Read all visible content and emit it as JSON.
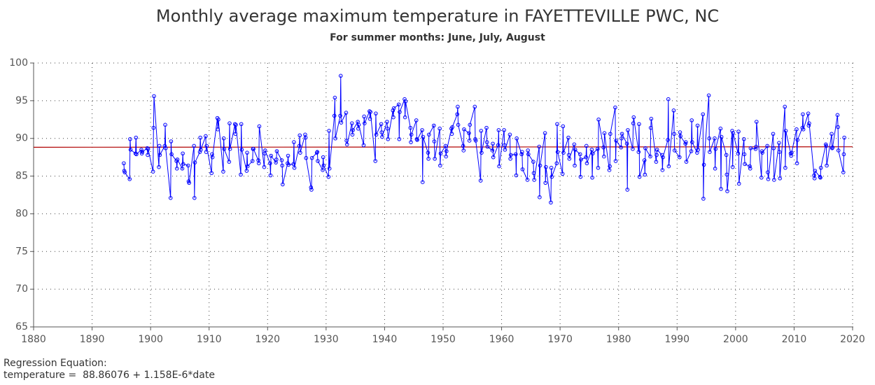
{
  "chart_data": {
    "type": "line",
    "title": "Monthly average maximum temperature in FAYETTEVILLE PWC, NC",
    "subtitle": "For summer months: June, July, August",
    "xlim": [
      1880,
      2020
    ],
    "xticks": [
      1880,
      1890,
      1900,
      1910,
      1920,
      1930,
      1940,
      1950,
      1960,
      1970,
      1980,
      1990,
      2000,
      2010,
      2020
    ],
    "ylim": [
      65,
      100
    ],
    "yticks": [
      65,
      70,
      75,
      80,
      85,
      90,
      95,
      100
    ],
    "grid": true,
    "regression": {
      "label": "Regression Equation:",
      "equation": "temperature =  88.86076 + 1.158E-6*date",
      "intercept": 88.86076,
      "slope": 1.158e-06,
      "color": "#b00000"
    },
    "x": [
      1895.42,
      1895.5,
      1895.58,
      1896.42,
      1896.5,
      1896.58,
      1897.42,
      1897.5,
      1897.58,
      1898.42,
      1898.5,
      1898.58,
      1899.42,
      1899.5,
      1899.58,
      1900.42,
      1900.5,
      1900.58,
      1901.42,
      1901.5,
      1901.58,
      1902.42,
      1902.5,
      1902.58,
      1903.42,
      1903.5,
      1903.58,
      1904.42,
      1904.5,
      1904.58,
      1905.42,
      1905.5,
      1905.58,
      1906.42,
      1906.5,
      1906.58,
      1907.42,
      1907.5,
      1907.58,
      1908.42,
      1908.5,
      1908.58,
      1909.42,
      1909.5,
      1909.58,
      1910.42,
      1910.5,
      1910.58,
      1911.42,
      1911.5,
      1911.58,
      1912.42,
      1912.5,
      1912.58,
      1913.42,
      1913.5,
      1913.58,
      1914.42,
      1914.5,
      1914.58,
      1915.42,
      1915.5,
      1915.58,
      1916.42,
      1916.5,
      1916.58,
      1917.42,
      1917.5,
      1917.58,
      1918.42,
      1918.5,
      1918.58,
      1919.42,
      1919.5,
      1919.58,
      1920.42,
      1920.5,
      1920.58,
      1921.42,
      1921.5,
      1921.58,
      1922.42,
      1922.5,
      1922.58,
      1923.42,
      1923.5,
      1923.58,
      1924.42,
      1924.5,
      1924.58,
      1925.42,
      1925.5,
      1925.58,
      1926.42,
      1926.5,
      1926.58,
      1927.42,
      1927.5,
      1927.58,
      1928.42,
      1928.5,
      1928.58,
      1929.42,
      1929.5,
      1929.58,
      1930.42,
      1930.5,
      1930.58,
      1931.42,
      1931.5,
      1931.58,
      1932.42,
      1932.5,
      1932.58,
      1933.42,
      1933.5,
      1933.58,
      1934.42,
      1934.5,
      1934.58,
      1935.42,
      1935.5,
      1935.58,
      1936.42,
      1936.5,
      1936.58,
      1937.42,
      1937.5,
      1937.58,
      1938.42,
      1938.5,
      1938.58,
      1939.42,
      1939.5,
      1939.58,
      1940.42,
      1940.5,
      1940.58,
      1941.42,
      1941.5,
      1941.58,
      1942.42,
      1942.5,
      1942.58,
      1943.42,
      1943.5,
      1943.58,
      1944.42,
      1944.5,
      1944.58,
      1945.42,
      1945.5,
      1945.58,
      1946.42,
      1946.5,
      1946.58,
      1947.42,
      1947.5,
      1947.58,
      1948.42,
      1948.5,
      1948.58,
      1949.42,
      1949.5,
      1949.58,
      1950.42,
      1950.5,
      1950.58,
      1951.42,
      1951.5,
      1951.58,
      1952.42,
      1952.5,
      1952.58,
      1953.42,
      1953.5,
      1953.58,
      1954.42,
      1954.5,
      1954.58,
      1955.42,
      1955.5,
      1955.58,
      1956.42,
      1956.5,
      1956.58,
      1957.42,
      1957.5,
      1957.58,
      1958.42,
      1958.5,
      1958.58,
      1959.42,
      1959.5,
      1959.58,
      1960.42,
      1960.5,
      1960.58,
      1961.42,
      1961.5,
      1961.58,
      1962.42,
      1962.5,
      1962.58,
      1963.42,
      1963.5,
      1963.58,
      1964.42,
      1964.5,
      1964.58,
      1965.42,
      1965.5,
      1965.58,
      1966.42,
      1966.5,
      1966.58,
      1967.42,
      1967.5,
      1967.58,
      1968.42,
      1968.5,
      1968.58,
      1969.42,
      1969.5,
      1969.58,
      1970.42,
      1970.5,
      1970.58,
      1971.42,
      1971.5,
      1971.58,
      1972.42,
      1972.5,
      1972.58,
      1973.42,
      1973.5,
      1973.58,
      1974.42,
      1974.5,
      1974.58,
      1975.42,
      1975.5,
      1975.58,
      1976.42,
      1976.5,
      1976.58,
      1977.42,
      1977.5,
      1977.58,
      1978.42,
      1978.5,
      1978.58,
      1979.42,
      1979.5,
      1979.58,
      1980.42,
      1980.5,
      1980.58,
      1981.42,
      1981.5,
      1981.58,
      1982.42,
      1982.5,
      1982.58,
      1983.42,
      1983.5,
      1983.58,
      1984.42,
      1984.5,
      1984.58,
      1985.42,
      1985.5,
      1985.58,
      1986.42,
      1986.5,
      1986.58,
      1987.42,
      1987.5,
      1987.58,
      1988.42,
      1988.5,
      1988.58,
      1989.42,
      1989.5,
      1989.58,
      1990.42,
      1990.5,
      1990.58,
      1991.42,
      1991.5,
      1991.58,
      1992.42,
      1992.5,
      1992.58,
      1993.42,
      1993.5,
      1993.58,
      1994.42,
      1994.5,
      1994.58,
      1995.42,
      1995.5,
      1995.58,
      1996.42,
      1996.5,
      1996.58,
      1997.42,
      1997.5,
      1997.58,
      1998.42,
      1998.5,
      1998.58,
      1999.42,
      1999.5,
      1999.58,
      2000.42,
      2000.5,
      2000.58,
      2001.42,
      2001.5,
      2001.58,
      2002.42,
      2002.5,
      2002.58,
      2003.42,
      2003.5,
      2003.58,
      2004.42,
      2004.5,
      2004.58,
      2005.42,
      2005.5,
      2005.58,
      2006.42,
      2006.5,
      2006.58,
      2007.42,
      2007.5,
      2007.58,
      2008.42,
      2008.5,
      2008.58,
      2009.42,
      2009.5,
      2009.58,
      2010.42,
      2010.5,
      2010.58,
      2011.42,
      2011.5,
      2011.58,
      2012.42,
      2012.5,
      2012.58,
      2013.42,
      2013.5,
      2013.58,
      2014.42,
      2014.5,
      2014.58,
      2015.42,
      2015.5,
      2015.58,
      2016.42,
      2016.5,
      2016.58,
      2017.42,
      2017.5,
      2017.58,
      2018.42,
      2018.5,
      2018.58
    ],
    "series": [
      {
        "color": "#0000ff",
        "values": [
          86.7,
          85.7,
          85.5,
          84.6,
          89.9,
          88.5,
          88.0,
          90.1,
          87.9,
          88.5,
          88.0,
          88.2,
          88.7,
          87.8,
          88.6,
          85.6,
          91.4,
          95.6,
          86.2,
          89.0,
          87.8,
          89.0,
          91.8,
          88.7,
          82.1,
          89.6,
          87.9,
          87.0,
          86.0,
          87.2,
          86.0,
          88.0,
          86.6,
          86.4,
          84.3,
          84.1,
          89.0,
          82.1,
          86.8,
          88.2,
          90.1,
          88.5,
          90.3,
          88.2,
          89.0,
          85.4,
          87.9,
          87.5,
          92.7,
          91.2,
          92.5,
          85.6,
          90.0,
          88.6,
          86.9,
          92.0,
          88.6,
          91.9,
          90.6,
          91.8,
          85.2,
          91.9,
          88.5,
          85.7,
          88.1,
          86.3,
          87.0,
          88.6,
          88.6,
          87.1,
          86.7,
          91.6,
          86.2,
          88.0,
          88.4,
          86.7,
          85.1,
          87.7,
          86.8,
          87.2,
          88.3,
          87.1,
          86.4,
          83.9,
          86.7,
          87.7,
          86.5,
          86.6,
          89.5,
          86.1,
          89.0,
          90.4,
          88.1,
          90.5,
          90.1,
          87.4,
          83.5,
          83.2,
          87.4,
          88.1,
          88.2,
          87.0,
          85.8,
          87.5,
          86.4,
          84.9,
          91.0,
          86.0,
          93.0,
          95.4,
          90.0,
          93.0,
          98.3,
          92.1,
          93.4,
          89.7,
          89.2,
          92.0,
          90.5,
          91.1,
          92.2,
          91.3,
          91.8,
          89.1,
          92.9,
          92.0,
          93.6,
          92.6,
          93.5,
          87.0,
          93.3,
          90.5,
          91.9,
          90.8,
          90.2,
          92.2,
          91.3,
          89.9,
          93.7,
          92.8,
          94.0,
          94.5,
          89.9,
          93.5,
          95.2,
          92.8,
          94.9,
          91.4,
          89.5,
          90.5,
          92.4,
          89.9,
          89.8,
          91.1,
          84.2,
          90.2,
          88.1,
          87.3,
          90.5,
          91.7,
          89.6,
          87.3,
          91.3,
          86.4,
          88.0,
          89.0,
          87.6,
          88.3,
          91.3,
          90.6,
          91.5,
          93.2,
          94.2,
          91.8,
          89.0,
          88.4,
          91.2,
          90.7,
          89.7,
          91.8,
          94.2,
          89.9,
          89.7,
          84.4,
          91.0,
          88.1,
          91.4,
          89.5,
          88.9,
          88.4,
          89.3,
          87.5,
          89.1,
          91.1,
          86.3,
          91.1,
          89.1,
          88.5,
          90.5,
          87.3,
          87.8,
          87.9,
          85.1,
          90.0,
          87.9,
          88.2,
          85.9,
          84.5,
          88.4,
          87.9,
          86.9,
          85.4,
          84.5,
          88.9,
          82.2,
          86.4,
          90.7,
          84.1,
          86.2,
          81.5,
          86.1,
          84.9,
          86.7,
          91.9,
          88.2,
          85.3,
          91.6,
          88.1,
          90.1,
          87.8,
          87.3,
          89.2,
          86.4,
          88.5,
          87.9,
          84.9,
          87.2,
          87.5,
          89.0,
          86.7,
          88.5,
          84.8,
          88.0,
          88.6,
          86.1,
          92.5,
          88.8,
          87.6,
          90.7,
          85.8,
          86.3,
          90.6,
          94.1,
          87.0,
          89.7,
          88.8,
          90.0,
          90.6,
          89.3,
          83.2,
          91.1,
          88.6,
          92.0,
          92.8,
          88.2,
          91.9,
          84.9,
          87.1,
          85.2,
          88.7,
          87.6,
          91.4,
          92.6,
          86.9,
          87.8,
          88.5,
          87.8,
          85.8,
          87.5,
          89.8,
          95.2,
          86.3,
          93.7,
          90.6,
          88.4,
          87.5,
          90.8,
          90.3,
          89.3,
          89.5,
          86.9,
          88.3,
          92.4,
          89.5,
          88.1,
          91.7,
          88.5,
          93.2,
          82.0,
          86.5,
          95.7,
          90.0,
          88.2,
          90.0,
          86.0,
          88.6,
          91.3,
          83.3,
          90.2,
          87.8,
          85.2,
          83.0,
          91.0,
          86.2,
          90.7,
          88.0,
          90.9,
          84.0,
          89.9,
          87.9,
          86.6,
          86.3,
          86.0,
          88.7,
          88.6,
          88.9,
          92.2,
          84.8,
          88.3,
          88.1,
          89.0,
          85.5,
          84.6,
          90.6,
          88.7,
          84.5,
          89.4,
          88.2,
          84.7,
          94.2,
          86.1,
          91.0,
          88.0,
          87.7,
          88.1,
          91.2,
          86.7,
          89.8,
          91.4,
          93.2,
          91.2,
          93.3,
          91.7,
          92.0,
          85.1,
          84.7,
          85.7,
          84.9,
          84.8,
          86.1,
          89.2,
          89.0,
          86.4,
          90.6,
          88.7,
          88.8,
          93.1,
          91.5,
          88.4,
          85.5,
          87.9,
          90.1
        ]
      }
    ]
  }
}
